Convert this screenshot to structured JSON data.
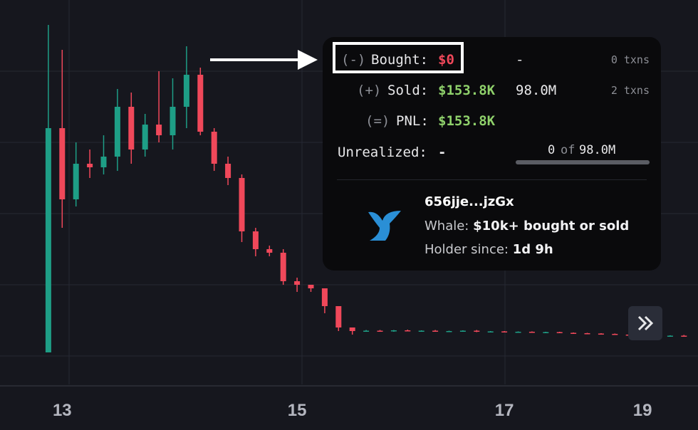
{
  "chart_data": {
    "type": "candlestick",
    "categories": [
      null,
      null,
      null,
      null,
      "13",
      null,
      null,
      null,
      null,
      null,
      null,
      null,
      null,
      null,
      null,
      null,
      null,
      null,
      null,
      null,
      null,
      "15",
      null,
      null,
      null,
      null,
      null,
      null,
      null,
      null,
      null,
      null,
      null,
      null,
      null,
      null,
      "17",
      null,
      null,
      null,
      null,
      null,
      null,
      null,
      null,
      null,
      "19",
      null,
      null,
      null
    ],
    "series": [
      {
        "up_color": "#1e9e86",
        "down_color": "#f0485a",
        "open": [
          null,
          null,
          null,
          9,
          72,
          52,
          62,
          61,
          64,
          78,
          66,
          73,
          70,
          78,
          87,
          71,
          62,
          58,
          43,
          38,
          37,
          29,
          28,
          27,
          22,
          16,
          15.0,
          15.1,
          15.0,
          15.2,
          15.0,
          15.1,
          14.9,
          15.0,
          15.1,
          14.8,
          14.9,
          14.7,
          14.8,
          14.6,
          14.7,
          14.5,
          14.4,
          14.3,
          14.2,
          14.0,
          13.9,
          13.8,
          13.6,
          13.7
        ],
        "high": [
          null,
          null,
          null,
          101,
          94,
          68,
          66,
          70,
          83,
          82,
          76,
          88,
          86,
          95,
          89,
          72,
          64,
          59,
          44,
          39,
          38,
          30,
          28,
          27,
          22,
          16,
          15.3,
          15.3,
          15.3,
          15.4,
          15.2,
          15.3,
          15.1,
          15.2,
          15.3,
          15.0,
          15.0,
          14.9,
          14.9,
          14.8,
          14.8,
          14.6,
          14.5,
          14.4,
          14.3,
          14.1,
          14.0,
          13.9,
          13.8,
          13.9
        ],
        "low": [
          null,
          null,
          null,
          9,
          44,
          50,
          58,
          59,
          60,
          62,
          64,
          68,
          66,
          72,
          70,
          60,
          56,
          40,
          36,
          36,
          28,
          26,
          26,
          20,
          15,
          14,
          14.8,
          14.9,
          14.8,
          14.9,
          14.8,
          14.8,
          14.7,
          14.8,
          14.7,
          14.6,
          14.6,
          14.5,
          14.5,
          14.4,
          14.4,
          14.3,
          14.2,
          14.1,
          13.9,
          13.8,
          13.7,
          13.5,
          13.4,
          13.5
        ],
        "close": [
          null,
          null,
          null,
          72,
          52,
          62,
          61,
          64,
          78,
          66,
          73,
          70,
          78,
          87,
          71,
          62,
          58,
          43,
          38,
          37,
          29,
          28,
          27,
          22,
          16,
          15,
          15.1,
          15.0,
          15.2,
          15.0,
          15.1,
          14.9,
          15.0,
          15.1,
          14.8,
          14.9,
          14.7,
          14.8,
          14.6,
          14.7,
          14.5,
          14.4,
          14.3,
          14.2,
          14.0,
          13.9,
          13.8,
          13.6,
          13.7,
          13.6
        ]
      }
    ],
    "ylim": [
      0,
      102
    ]
  },
  "tooltip": {
    "bought": {
      "sign": "(-)",
      "label": "Bought:",
      "value": "$0",
      "amount": "-",
      "txns": "0 txns"
    },
    "sold": {
      "sign": "(+)",
      "label": "Sold:",
      "value": "$153.8K",
      "amount": "98.0M",
      "txns": "2 txns"
    },
    "pnl": {
      "sign": "(=)",
      "label": "PNL:",
      "value": "$153.8K"
    },
    "unrealized": {
      "label": "Unrealized:",
      "value": "-",
      "held": "0",
      "of": "of",
      "total": "98.0M"
    },
    "wallet": {
      "address": "656jje...jzGx",
      "type_label": "Whale:",
      "type_value": "$10k+ bought or sold",
      "since_label": "Holder since:",
      "since_value": "1d 9h"
    }
  }
}
